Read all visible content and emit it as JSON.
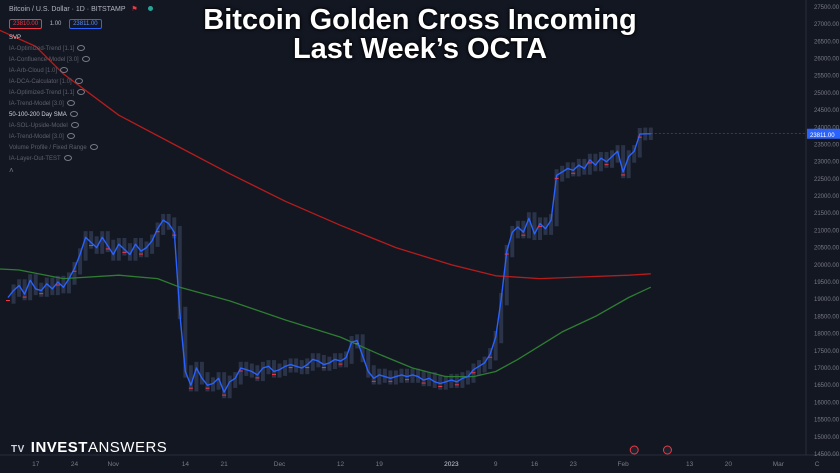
{
  "headline": {
    "line1": "Bitcoin Golden Cross Incoming",
    "line2": "Last Week’s OCTA"
  },
  "symbol": {
    "title": "Bitcoin / U.S. Dollar · 1D · BITSTAMP",
    "bid": "23810.00",
    "spread": "1.00",
    "ask": "23811.00"
  },
  "legend": [
    {
      "label": "SVP",
      "bright": true
    },
    {
      "label": "IA-Optimized-Trend [1.1]",
      "bright": false
    },
    {
      "label": "IA-Confluence-Model [3.0]",
      "bright": false
    },
    {
      "label": "IA-Arb-Cloud [1.0]",
      "bright": false
    },
    {
      "label": "IA-DCA-Calculator [1.0]",
      "bright": false
    },
    {
      "label": "IA-Optimized-Trend [1.1]",
      "bright": false
    },
    {
      "label": "IA-Trend-Model [3.0]",
      "bright": false
    },
    {
      "label": "50-100-200 Day SMA",
      "bright": true
    },
    {
      "label": "IA-SOL-Upside-Model",
      "bright": false
    },
    {
      "label": "IA-Trend-Model [3.0]",
      "bright": false
    },
    {
      "label": "Volume Profile / Fixed Range",
      "bright": false
    },
    {
      "label": "IA-Layer-Out-TEST",
      "bright": false
    }
  ],
  "brand": {
    "logo": "TV",
    "bold": "INVEST",
    "light": "ANSWERS"
  },
  "chart_data": {
    "type": "line",
    "y_axis": {
      "range": [
        14500,
        27700
      ],
      "ticks": [
        27500,
        27000,
        26500,
        26000,
        25500,
        25000,
        24500,
        24000,
        23500,
        23000,
        22500,
        22000,
        21500,
        21000,
        20500,
        20000,
        19500,
        19000,
        18500,
        18000,
        17500,
        17000,
        16500,
        16000,
        15500,
        15000,
        14500
      ],
      "position": "right"
    },
    "x_axis": {
      "range": [
        0,
        144
      ],
      "ticks": [
        {
          "t": 5,
          "label": "17"
        },
        {
          "t": 12,
          "label": "24"
        },
        {
          "t": 19,
          "label": "Nov"
        },
        {
          "t": 32,
          "label": "14"
        },
        {
          "t": 39,
          "label": "21"
        },
        {
          "t": 49,
          "label": "Dec"
        },
        {
          "t": 60,
          "label": "12"
        },
        {
          "t": 67,
          "label": "19"
        },
        {
          "t": 80,
          "label": "2023"
        },
        {
          "t": 88,
          "label": "9"
        },
        {
          "t": 95,
          "label": "16"
        },
        {
          "t": 102,
          "label": "23"
        },
        {
          "t": 111,
          "label": "Feb"
        },
        {
          "t": 123,
          "label": "13"
        },
        {
          "t": 130,
          "label": "20"
        },
        {
          "t": 139,
          "label": "Mar"
        },
        {
          "t": 146,
          "label": "C"
        }
      ]
    },
    "last_price_label": "23811.00",
    "series": [
      {
        "key": "price",
        "color": "#2962ff",
        "points": [
          [
            0,
            19050
          ],
          [
            1,
            19250
          ],
          [
            2,
            19400
          ],
          [
            3,
            19150
          ],
          [
            4,
            19550
          ],
          [
            5,
            19300
          ],
          [
            6,
            19250
          ],
          [
            7,
            19450
          ],
          [
            8,
            19300
          ],
          [
            9,
            19500
          ],
          [
            10,
            19350
          ],
          [
            11,
            19600
          ],
          [
            12,
            19900
          ],
          [
            13,
            20300
          ],
          [
            14,
            20800
          ],
          [
            15,
            20650
          ],
          [
            16,
            20500
          ],
          [
            17,
            20800
          ],
          [
            18,
            20550
          ],
          [
            19,
            20300
          ],
          [
            20,
            20600
          ],
          [
            21,
            20450
          ],
          [
            22,
            20300
          ],
          [
            23,
            20600
          ],
          [
            24,
            20400
          ],
          [
            25,
            20500
          ],
          [
            26,
            20700
          ],
          [
            27,
            21050
          ],
          [
            28,
            21300
          ],
          [
            29,
            21200
          ],
          [
            30,
            20950
          ],
          [
            31,
            18600
          ],
          [
            32,
            16900
          ],
          [
            33,
            16500
          ],
          [
            34,
            17000
          ],
          [
            35,
            16700
          ],
          [
            36,
            16500
          ],
          [
            37,
            16550
          ],
          [
            38,
            16700
          ],
          [
            39,
            16300
          ],
          [
            40,
            16600
          ],
          [
            41,
            16700
          ],
          [
            42,
            17000
          ],
          [
            43,
            16950
          ],
          [
            44,
            16900
          ],
          [
            45,
            16800
          ],
          [
            46,
            17000
          ],
          [
            47,
            17050
          ],
          [
            48,
            16900
          ],
          [
            49,
            16950
          ],
          [
            50,
            17050
          ],
          [
            51,
            17100
          ],
          [
            52,
            17050
          ],
          [
            53,
            17000
          ],
          [
            54,
            17100
          ],
          [
            55,
            17250
          ],
          [
            56,
            17200
          ],
          [
            57,
            17100
          ],
          [
            58,
            17150
          ],
          [
            59,
            17250
          ],
          [
            60,
            17200
          ],
          [
            61,
            17300
          ],
          [
            62,
            17750
          ],
          [
            63,
            17800
          ],
          [
            64,
            17350
          ],
          [
            65,
            16900
          ],
          [
            66,
            16700
          ],
          [
            67,
            16800
          ],
          [
            68,
            16750
          ],
          [
            69,
            16700
          ],
          [
            70,
            16750
          ],
          [
            71,
            16800
          ],
          [
            72,
            16750
          ],
          [
            73,
            16800
          ],
          [
            74,
            16750
          ],
          [
            75,
            16650
          ],
          [
            76,
            16700
          ],
          [
            77,
            16600
          ],
          [
            78,
            16550
          ],
          [
            79,
            16600
          ],
          [
            80,
            16650
          ],
          [
            81,
            16600
          ],
          [
            82,
            16700
          ],
          [
            83,
            16750
          ],
          [
            84,
            16950
          ],
          [
            85,
            17050
          ],
          [
            86,
            17150
          ],
          [
            87,
            17400
          ],
          [
            88,
            17900
          ],
          [
            89,
            19000
          ],
          [
            90,
            20400
          ],
          [
            91,
            20950
          ],
          [
            92,
            21100
          ],
          [
            93,
            20950
          ],
          [
            94,
            21350
          ],
          [
            95,
            20900
          ],
          [
            96,
            21200
          ],
          [
            97,
            21050
          ],
          [
            98,
            21300
          ],
          [
            99,
            22600
          ],
          [
            100,
            22700
          ],
          [
            101,
            22800
          ],
          [
            102,
            22750
          ],
          [
            103,
            22900
          ],
          [
            104,
            22800
          ],
          [
            105,
            23050
          ],
          [
            106,
            22900
          ],
          [
            107,
            23100
          ],
          [
            108,
            23000
          ],
          [
            109,
            23150
          ],
          [
            110,
            23300
          ],
          [
            111,
            22700
          ],
          [
            112,
            23150
          ],
          [
            113,
            23300
          ],
          [
            114,
            23800
          ],
          [
            115,
            23810
          ],
          [
            116,
            23811
          ]
        ]
      },
      {
        "key": "sma200",
        "color": "#b71c1c",
        "points": [
          [
            -4,
            27000
          ],
          [
            5,
            26350
          ],
          [
            10,
            25550
          ],
          [
            20,
            24350
          ],
          [
            30,
            23500
          ],
          [
            40,
            22650
          ],
          [
            50,
            21850
          ],
          [
            60,
            21150
          ],
          [
            70,
            20500
          ],
          [
            80,
            20000
          ],
          [
            88,
            19680
          ],
          [
            96,
            19600
          ],
          [
            104,
            19650
          ],
          [
            112,
            19700
          ],
          [
            116,
            19740
          ]
        ]
      },
      {
        "key": "sma50",
        "color": "#2e7d32",
        "points": [
          [
            -4,
            19900
          ],
          [
            2,
            19850
          ],
          [
            10,
            19600
          ],
          [
            20,
            19700
          ],
          [
            27,
            19600
          ],
          [
            31,
            19350
          ],
          [
            40,
            18950
          ],
          [
            50,
            18400
          ],
          [
            60,
            17900
          ],
          [
            67,
            17400
          ],
          [
            73,
            17000
          ],
          [
            79,
            16750
          ],
          [
            84,
            16750
          ],
          [
            88,
            16900
          ],
          [
            92,
            17250
          ],
          [
            96,
            17650
          ],
          [
            100,
            18050
          ],
          [
            106,
            18500
          ],
          [
            112,
            19050
          ],
          [
            116,
            19350
          ]
        ]
      }
    ]
  }
}
